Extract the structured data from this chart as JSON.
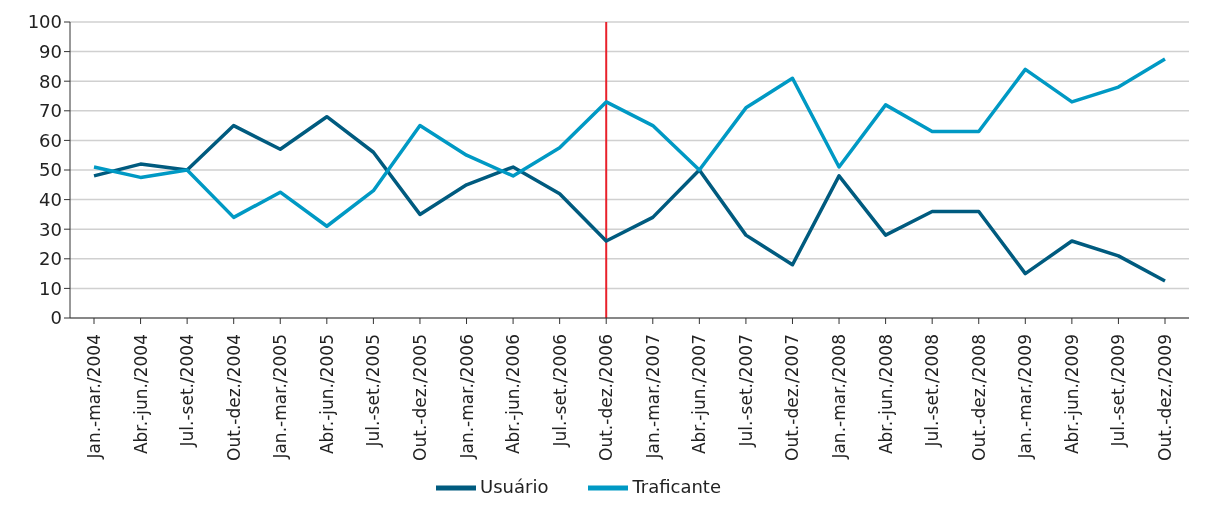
{
  "chart_data": {
    "type": "line",
    "categories": [
      "Jan.-mar./2004",
      "Abr.-jun./2004",
      "Jul.-set./2004",
      "Out.-dez./2004",
      "Jan.-mar./2005",
      "Abr.-jun./2005",
      "Jul.-set./2005",
      "Out.-dez./2005",
      "Jan.-mar./2006",
      "Abr.-jun./2006",
      "Jul.-set./2006",
      "Out.-dez./2006",
      "Jan.-mar./2007",
      "Abr.-jun./2007",
      "Jul.-set./2007",
      "Out.-dez./2007",
      "Jan.-mar./2008",
      "Abr.-jun./2008",
      "Jul.-set./2008",
      "Out.-dez./2008",
      "Jan.-mar./2009",
      "Abr.-jun./2009",
      "Jul.-set./2009",
      "Out.-dez./2009"
    ],
    "series": [
      {
        "name": "Usuário",
        "color": "#005b7f",
        "values": [
          48,
          52,
          50,
          65,
          57,
          68,
          56,
          35,
          45,
          51,
          42,
          26,
          34,
          50,
          28,
          18,
          48,
          28,
          36,
          36,
          15,
          26,
          21,
          12.5
        ]
      },
      {
        "name": "Traficante",
        "color": "#0099c4",
        "values": [
          51,
          47.5,
          50,
          34,
          42.5,
          31,
          43,
          65,
          55,
          48,
          57.5,
          73,
          65,
          50,
          71,
          81,
          51,
          72,
          63,
          63,
          84,
          73,
          78,
          87.5
        ]
      }
    ],
    "ylim": [
      0,
      100
    ],
    "yticks": [
      0,
      10,
      20,
      30,
      40,
      50,
      60,
      70,
      80,
      90,
      100
    ],
    "grid": "y",
    "legend": "bottom",
    "marker": "none",
    "line_style": "solid",
    "ref_lines": [
      {
        "axis": "x",
        "value": "Out.-dez./2006",
        "color": "#e8212b"
      }
    ]
  }
}
